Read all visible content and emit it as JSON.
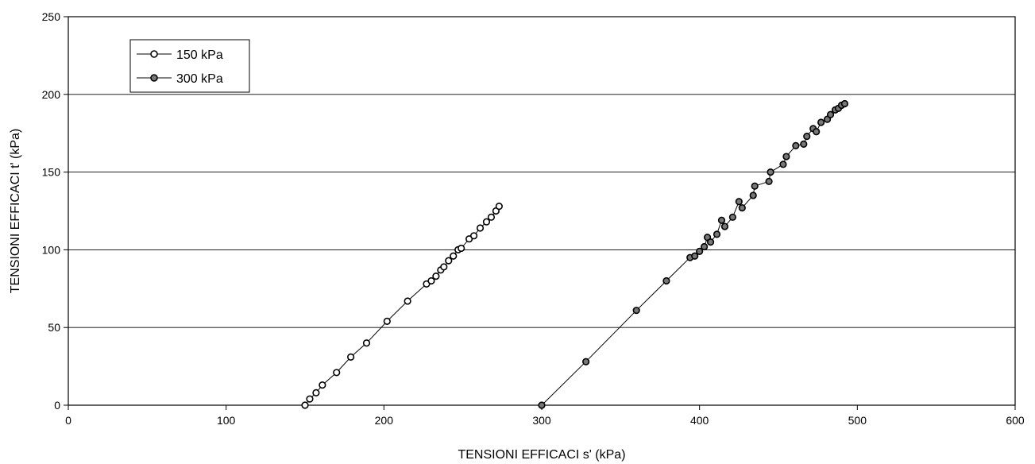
{
  "chart_data": {
    "type": "scatter",
    "title": "",
    "xlabel": "TENSIONI EFFICACI s' (kPa)",
    "ylabel": "TENSIONI EFFICACI t'  (kPa)",
    "xlim": [
      0,
      600
    ],
    "ylim": [
      0,
      250
    ],
    "x_ticks": [
      0,
      100,
      200,
      300,
      400,
      500,
      600
    ],
    "y_ticks": [
      0,
      50,
      100,
      150,
      200,
      250
    ],
    "grid": "horizontal",
    "legend_placement": "top-left",
    "series": [
      {
        "name": "150 kPa",
        "marker": "open-circle",
        "x": [
          150,
          153,
          157,
          161,
          170,
          179,
          189,
          202,
          215,
          227,
          230,
          233,
          236,
          238,
          241,
          244,
          247,
          249,
          254,
          257,
          261,
          265,
          268,
          271,
          273
        ],
        "y": [
          0,
          4,
          8,
          13,
          21,
          31,
          40,
          54,
          67,
          78,
          80,
          83,
          87,
          89,
          93,
          96,
          100,
          101,
          107,
          109,
          114,
          118,
          121,
          125,
          128
        ]
      },
      {
        "name": "300 kPa",
        "marker": "filled-circle",
        "x": [
          300,
          328,
          360,
          379,
          394,
          397,
          400,
          403,
          405,
          407,
          411,
          414,
          416,
          421,
          425,
          427,
          434,
          435,
          444,
          445,
          453,
          455,
          461,
          466,
          468,
          472,
          474,
          477,
          481,
          483,
          486,
          488,
          490,
          492
        ],
        "y": [
          0,
          28,
          61,
          80,
          95,
          96,
          99,
          102,
          108,
          105,
          110,
          119,
          115,
          121,
          131,
          127,
          135,
          141,
          144,
          150,
          155,
          160,
          167,
          168,
          173,
          178,
          176,
          182,
          184,
          187,
          190,
          191,
          193,
          194
        ]
      }
    ],
    "colors": {
      "line": "#000000",
      "grid": "#000000",
      "open_fill": "#ffffff",
      "filled_fill": "#777777"
    }
  }
}
